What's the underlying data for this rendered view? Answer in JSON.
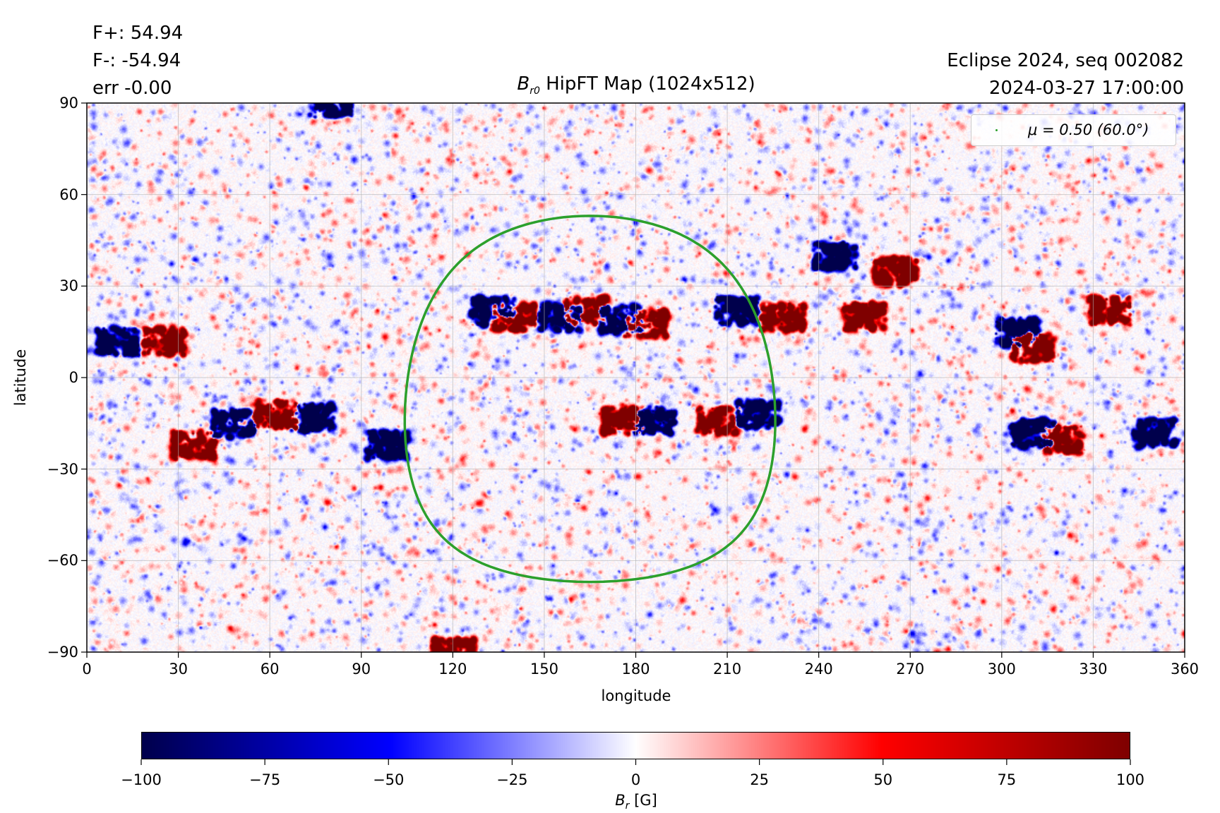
{
  "header": {
    "flux_pos": "F+: 54.94",
    "flux_neg": "F-: -54.94",
    "err": "err -0.00",
    "title_symbol": "B",
    "title_sub": "r0",
    "title_rest": " HipFT Map (1024x512)",
    "run": "Eclipse 2024, seq 002082",
    "datetime": "2024-03-27 17:00:00"
  },
  "chart_data": {
    "type": "heatmap",
    "xlabel": "longitude",
    "ylabel": "latitude",
    "xlim": [
      0,
      360
    ],
    "ylim": [
      -90,
      90
    ],
    "xticks": [
      "0",
      "30",
      "60",
      "90",
      "120",
      "150",
      "180",
      "210",
      "240",
      "270",
      "300",
      "330",
      "360"
    ],
    "yticks": [
      "90",
      "60",
      "30",
      "0",
      "−30",
      "−60",
      "−90"
    ],
    "grid": true,
    "colormap": "seismic",
    "clim": [
      -100,
      100
    ],
    "colorbar": {
      "label_symbol": "B",
      "label_sub": "r",
      "label_unit": " [G]",
      "ticks": [
        "−100",
        "−75",
        "−50",
        "−25",
        "0",
        "25",
        "50",
        "75",
        "100"
      ],
      "placement": "bottom"
    },
    "legend": {
      "label": "μ = 0.50 (60.0°)",
      "color": "#2ca02c",
      "placement": "top-right"
    },
    "mu_contour": {
      "mu": 0.5,
      "center_lon": 165,
      "center_lat": -7,
      "angular_radius_deg": 60,
      "color": "#2ca02c"
    },
    "active_regions": [
      {
        "lon": 140,
        "lat": 20,
        "sign": 1
      },
      {
        "lon": 133,
        "lat": 22,
        "sign": -1
      },
      {
        "lon": 155,
        "lat": 20,
        "sign": -1
      },
      {
        "lon": 163,
        "lat": 22,
        "sign": 1
      },
      {
        "lon": 175,
        "lat": 19,
        "sign": -1
      },
      {
        "lon": 183,
        "lat": 18,
        "sign": 1
      },
      {
        "lon": 213,
        "lat": 22,
        "sign": -1
      },
      {
        "lon": 228,
        "lat": 20,
        "sign": 1
      },
      {
        "lon": 207,
        "lat": -14,
        "sign": 1
      },
      {
        "lon": 220,
        "lat": -12,
        "sign": -1
      },
      {
        "lon": 176,
        "lat": -14,
        "sign": 1
      },
      {
        "lon": 186,
        "lat": -14,
        "sign": -1
      },
      {
        "lon": 35,
        "lat": -22,
        "sign": 1
      },
      {
        "lon": 48,
        "lat": -15,
        "sign": -1
      },
      {
        "lon": 62,
        "lat": -12,
        "sign": 1
      },
      {
        "lon": 74,
        "lat": -13,
        "sign": -1
      },
      {
        "lon": 25,
        "lat": 12,
        "sign": 1
      },
      {
        "lon": 10,
        "lat": 12,
        "sign": -1
      },
      {
        "lon": 98,
        "lat": -22,
        "sign": -1
      },
      {
        "lon": 255,
        "lat": 20,
        "sign": 1
      },
      {
        "lon": 310,
        "lat": -18,
        "sign": -1
      },
      {
        "lon": 320,
        "lat": -20,
        "sign": 1
      },
      {
        "lon": 350,
        "lat": -18,
        "sign": -1
      },
      {
        "lon": 335,
        "lat": 22,
        "sign": 1
      },
      {
        "lon": 310,
        "lat": 10,
        "sign": 1
      },
      {
        "lon": 305,
        "lat": 15,
        "sign": -1
      },
      {
        "lon": 245,
        "lat": 40,
        "sign": -1
      },
      {
        "lon": 265,
        "lat": 35,
        "sign": 1
      },
      {
        "lon": 80,
        "lat": 90,
        "sign": -1
      },
      {
        "lon": 120,
        "lat": -90,
        "sign": 1
      }
    ]
  }
}
